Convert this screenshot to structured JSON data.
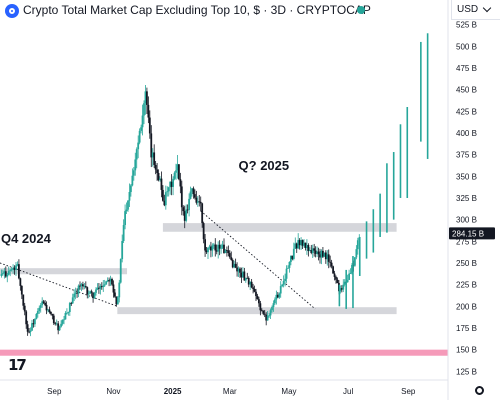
{
  "header": {
    "title": "Crypto Total Market Cap Excluding Top 10, $ · 3D · CRYPTOCAP",
    "symbol_icon": "crypto-cap-icon",
    "status_color": "#26a69a"
  },
  "currency_button": {
    "label": "USD",
    "icon": "chevron-down-icon"
  },
  "logo_text": "17",
  "settings_icon": "gear-icon",
  "colors": {
    "candle_up": "#26a69a",
    "candle_down": "#131722",
    "zone_gray": "#b2b5be",
    "zone_pink": "#e91e63",
    "projection": "#26a69a"
  },
  "chart_data": {
    "type": "candlestick",
    "title": "Crypto Total Market Cap Excluding Top 10, $ · 3D · CRYPTOCAP",
    "y_unit": "B",
    "ylim": [
      115,
      528
    ],
    "xlim": [
      "2024-07-07",
      "2025-10-12"
    ],
    "y_ticks": [
      125,
      150,
      175,
      200,
      225,
      250,
      275,
      300,
      325,
      350,
      375,
      400,
      425,
      450,
      475,
      500,
      525
    ],
    "x_ticks": [
      {
        "date": "2024-09-01",
        "label": "Sep"
      },
      {
        "date": "2024-11-01",
        "label": "Nov"
      },
      {
        "date": "2025-01-01",
        "label": "2025"
      },
      {
        "date": "2025-03-01",
        "label": "Mar"
      },
      {
        "date": "2025-05-01",
        "label": "May"
      },
      {
        "date": "2025-07-01",
        "label": "Jul"
      },
      {
        "date": "2025-09-01",
        "label": "Sep"
      }
    ],
    "last_price": {
      "value": 284.15,
      "label": "284.15 B"
    },
    "anchors": [
      {
        "date": "2024-07-07",
        "close": 235
      },
      {
        "date": "2024-07-25",
        "close": 245
      },
      {
        "date": "2024-08-05",
        "close": 168
      },
      {
        "date": "2024-08-20",
        "close": 205
      },
      {
        "date": "2024-09-06",
        "close": 173
      },
      {
        "date": "2024-09-27",
        "close": 225
      },
      {
        "date": "2024-10-10",
        "close": 212
      },
      {
        "date": "2024-10-29",
        "close": 235
      },
      {
        "date": "2024-11-05",
        "close": 200
      },
      {
        "date": "2024-11-12",
        "close": 302
      },
      {
        "date": "2024-11-22",
        "close": 362
      },
      {
        "date": "2024-12-04",
        "close": 445
      },
      {
        "date": "2024-12-10",
        "close": 375
      },
      {
        "date": "2024-12-17",
        "close": 355
      },
      {
        "date": "2024-12-23",
        "close": 320
      },
      {
        "date": "2025-01-06",
        "close": 358
      },
      {
        "date": "2025-01-13",
        "close": 300
      },
      {
        "date": "2025-01-20",
        "close": 335
      },
      {
        "date": "2025-01-30",
        "close": 315
      },
      {
        "date": "2025-02-03",
        "close": 262
      },
      {
        "date": "2025-02-20",
        "close": 270
      },
      {
        "date": "2025-03-08",
        "close": 243
      },
      {
        "date": "2025-03-20",
        "close": 230
      },
      {
        "date": "2025-04-07",
        "close": 185
      },
      {
        "date": "2025-04-20",
        "close": 215
      },
      {
        "date": "2025-05-10",
        "close": 275
      },
      {
        "date": "2025-05-28",
        "close": 262
      },
      {
        "date": "2025-06-10",
        "close": 256
      },
      {
        "date": "2025-06-22",
        "close": 220
      },
      {
        "date": "2025-07-01",
        "close": 232
      },
      {
        "date": "2025-07-08",
        "close": 255
      },
      {
        "date": "2025-07-13",
        "close": 284.15
      }
    ],
    "zones": [
      {
        "name": "resistance-zone-upper",
        "date_from": "2024-12-22",
        "date_to": "2025-08-20",
        "y_from": 286,
        "y_to": 296,
        "color": "#b2b5be"
      },
      {
        "name": "resistance-zone-left",
        "date_from": "2024-07-07",
        "date_to": "2024-11-15",
        "y_from": 237,
        "y_to": 244,
        "color": "#b2b5be"
      },
      {
        "name": "support-zone-lower",
        "date_from": "2024-11-05",
        "date_to": "2025-08-20",
        "y_from": 191,
        "y_to": 199,
        "color": "#b2b5be"
      },
      {
        "name": "support-zone-pink",
        "date_from": "2024-07-07",
        "date_to": "2025-10-12",
        "y_from": 143,
        "y_to": 150,
        "color": "#e91e63"
      }
    ],
    "trendlines": [
      {
        "name": "trendline-left",
        "style": "dotted",
        "from": {
          "date": "2024-07-07",
          "value": 250
        },
        "to": {
          "date": "2024-11-05",
          "value": 200
        }
      },
      {
        "name": "trendline-right",
        "style": "dotted",
        "from": {
          "date": "2025-01-30",
          "value": 310
        },
        "to": {
          "date": "2025-05-28",
          "value": 197
        }
      }
    ],
    "projection_bars": [
      {
        "date": "2025-06-22",
        "low": 200,
        "high": 225
      },
      {
        "date": "2025-06-29",
        "low": 197,
        "high": 242
      },
      {
        "date": "2025-07-06",
        "low": 198,
        "high": 258
      },
      {
        "date": "2025-07-13",
        "low": 235,
        "high": 280
      },
      {
        "date": "2025-07-20",
        "low": 255,
        "high": 298
      },
      {
        "date": "2025-07-27",
        "low": 262,
        "high": 312
      },
      {
        "date": "2025-08-03",
        "low": 280,
        "high": 330
      },
      {
        "date": "2025-08-10",
        "low": 285,
        "high": 365
      },
      {
        "date": "2025-08-17",
        "low": 300,
        "high": 378
      },
      {
        "date": "2025-08-24",
        "low": 325,
        "high": 410
      },
      {
        "date": "2025-08-31",
        "low": 325,
        "high": 430
      },
      {
        "date": "2025-09-14",
        "low": 390,
        "high": 505
      },
      {
        "date": "2025-09-21",
        "low": 370,
        "high": 515
      }
    ],
    "annotations": [
      {
        "text": "Q4 2024",
        "date": "2024-07-08",
        "value": 273
      },
      {
        "text": "Q? 2025",
        "date": "2025-03-10",
        "value": 357
      }
    ]
  }
}
